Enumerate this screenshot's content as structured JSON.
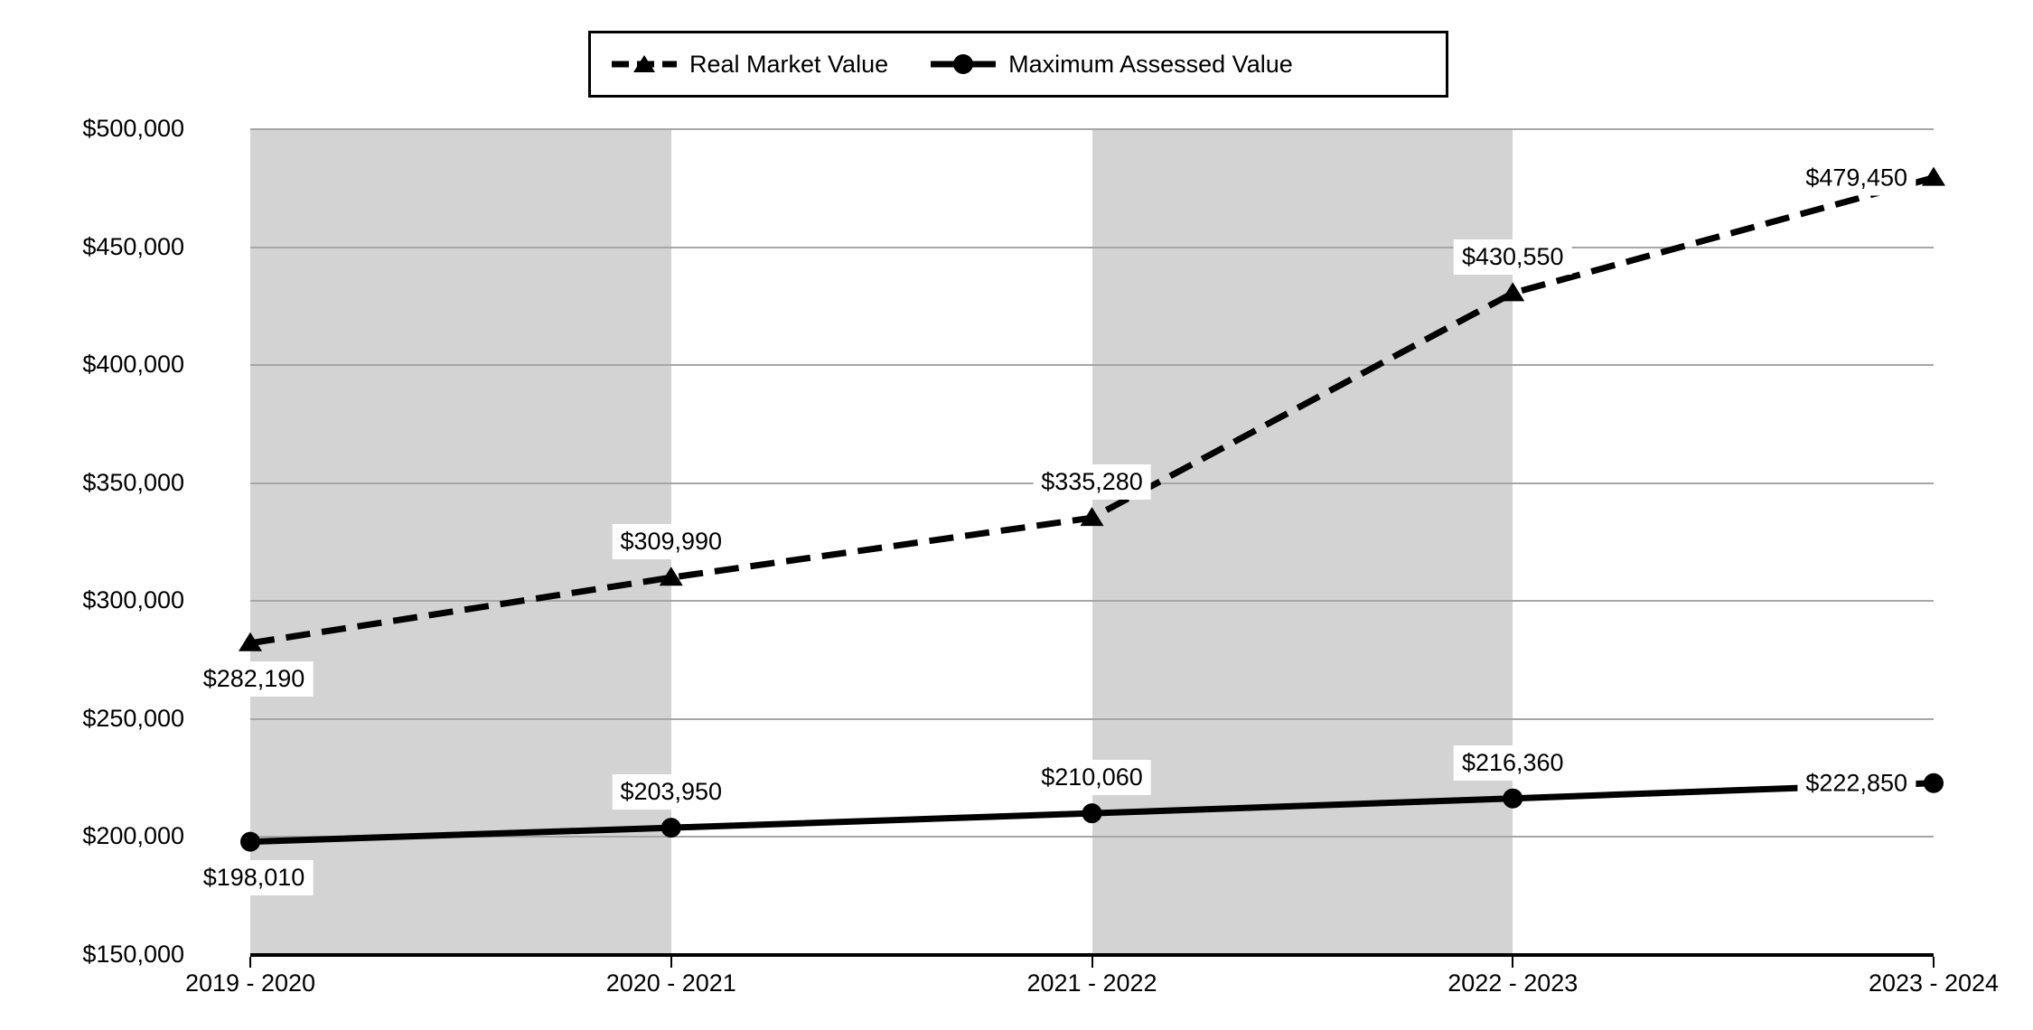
{
  "chart_data": {
    "type": "line",
    "title": "",
    "categories": [
      "2019 - 2020",
      "2020 - 2021",
      "2021 - 2022",
      "2022 - 2023",
      "2023 - 2024"
    ],
    "series": [
      {
        "name": "Real Market Value",
        "values": [
          282190,
          309990,
          335280,
          430550,
          479450
        ],
        "labels": [
          "$282,190",
          "$309,990",
          "$335,280",
          "$430,550",
          "$479,450"
        ],
        "label_positions": [
          "below",
          "above",
          "above",
          "above",
          "left"
        ],
        "line_style": "dashed",
        "marker": "triangle",
        "color": "#000000"
      },
      {
        "name": "Maximum Assessed Value",
        "values": [
          198010,
          203950,
          210060,
          216360,
          222850
        ],
        "labels": [
          "$198,010",
          "$203,950",
          "$210,060",
          "$216,360",
          "$222,850"
        ],
        "label_positions": [
          "below",
          "above",
          "above",
          "above",
          "left"
        ],
        "line_style": "solid",
        "marker": "circle",
        "color": "#000000"
      }
    ],
    "y_axis": {
      "min": 150000,
      "max": 500000,
      "step": 50000,
      "tick_labels": [
        "$150,000",
        "$200,000",
        "$250,000",
        "$300,000",
        "$350,000",
        "$400,000",
        "$450,000",
        "$500,000"
      ]
    },
    "legend": {
      "position": "top",
      "entries": [
        "Real Market Value",
        "Maximum Assessed Value"
      ]
    },
    "plot_bands": {
      "shaded_category_spans": [
        [
          0,
          1
        ],
        [
          2,
          3
        ]
      ],
      "color": "#d3d3d3"
    },
    "grid": true,
    "colors": {
      "series": "#000000",
      "gridline": "#a6a6a6",
      "band": "#d3d3d3",
      "axis": "#000000",
      "background": "#ffffff",
      "label_background": "#ffffff"
    }
  }
}
